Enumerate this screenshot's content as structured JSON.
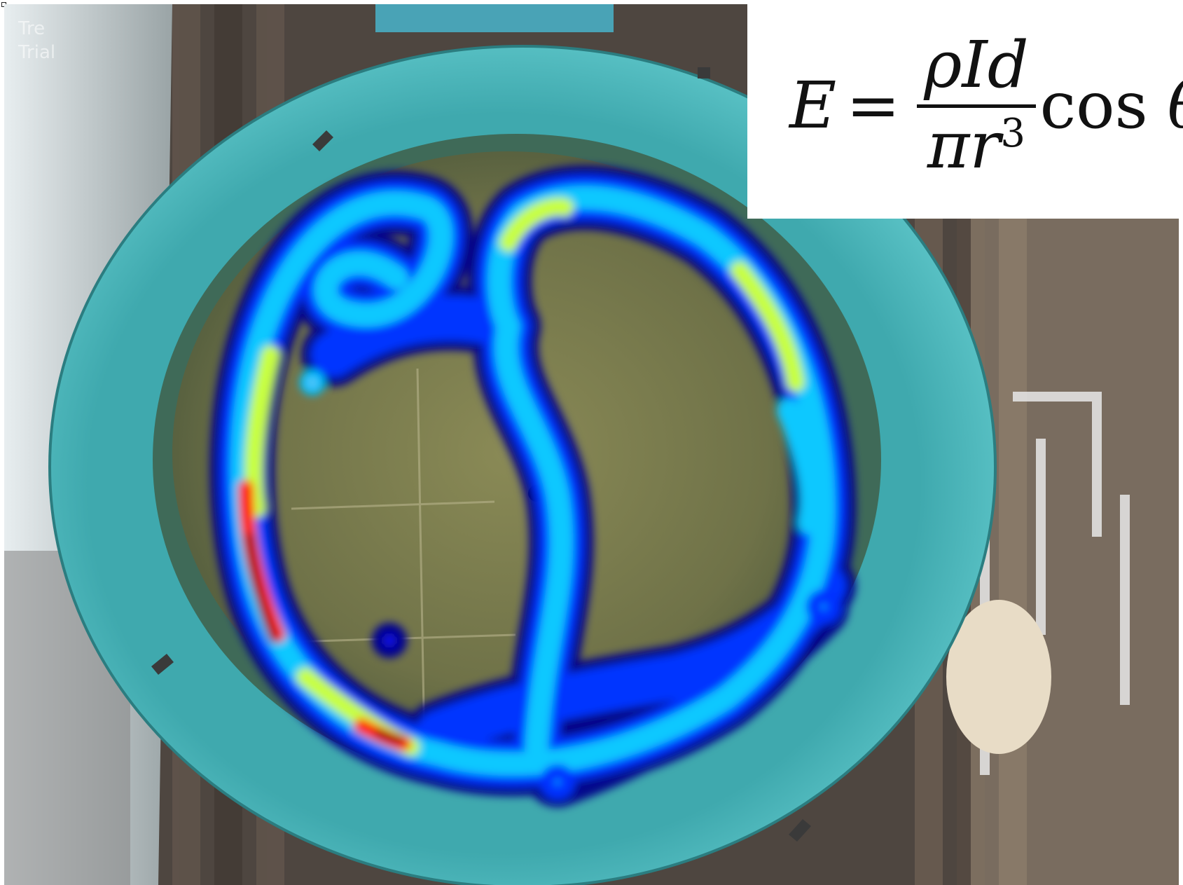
{
  "overlay_caption": {
    "line1": "Tre",
    "line2": "Trial"
  },
  "equation": {
    "lhs": "E",
    "equals": "=",
    "numerator": "ρId",
    "denominator": "πr",
    "exponent": "3",
    "function": "cos",
    "angle": "θ"
  },
  "colors": {
    "tank_rim": "#4fb8bc",
    "tank_water": "#6b6e44",
    "heatmap_low": "#00008c",
    "heatmap_mid": "#00d4ff",
    "heatmap_high": "#d40000",
    "deck_wood": "#5a4e44"
  },
  "heatmap_colormap": [
    "#000080",
    "#0000ff",
    "#00a0ff",
    "#00ffff",
    "#a0ff60",
    "#ffff00",
    "#ff8000",
    "#ff0000",
    "#800000"
  ]
}
